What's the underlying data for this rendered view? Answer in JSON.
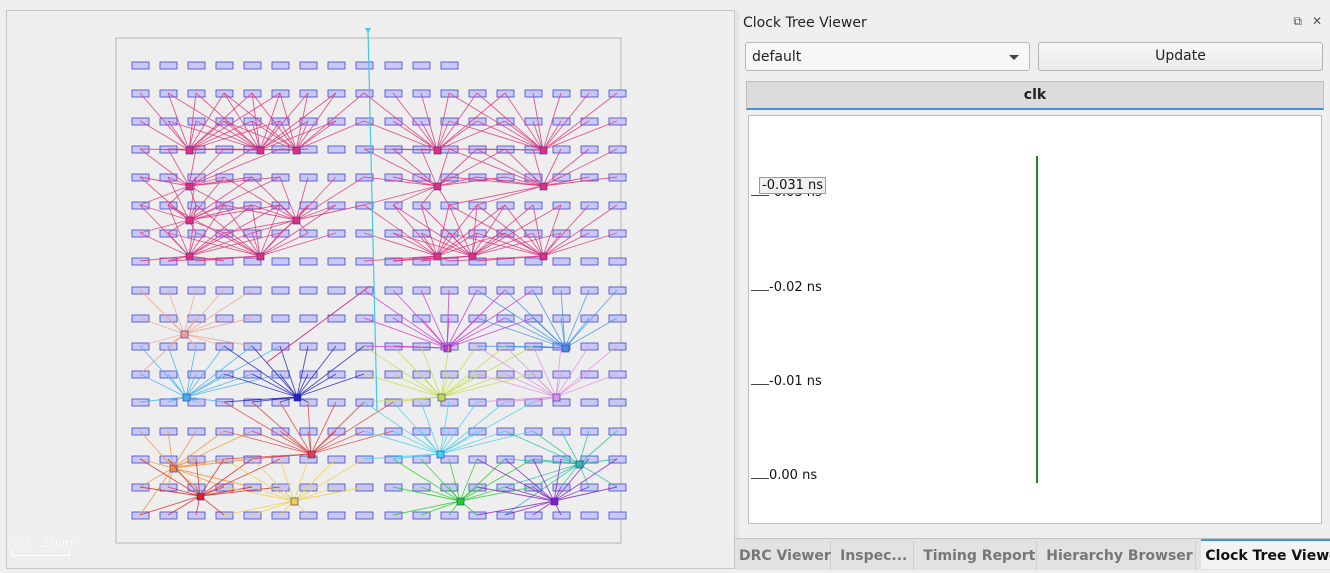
{
  "layout": {
    "scale_label": "0.3...10μm"
  },
  "dock": {
    "title": "Clock Tree Viewer",
    "float_icon": "float-icon",
    "close_icon": "close-icon",
    "combo_value": "default",
    "update_label": "Update",
    "clock_tab": "clk",
    "hover_value": "-0.031 ns",
    "y_ticks": [
      "-0.03 ns",
      "-0.02 ns",
      "-0.01 ns",
      "0.00 ns"
    ]
  },
  "bottom_tabs": [
    "DRC Viewer",
    "Inspec...",
    "Timing Report",
    "Hierarchy Browser",
    "Clock Tree Viewer"
  ],
  "colors": {
    "tree_line": "#1e8c1e",
    "tab_accent": "#4a90d9",
    "cell_fill": "#b8b8f0",
    "cell_stroke": "#4040c0"
  }
}
